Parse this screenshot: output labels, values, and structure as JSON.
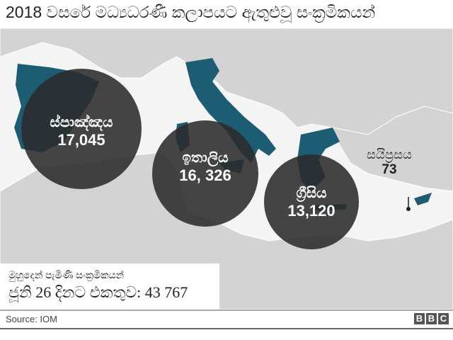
{
  "title": "2018 වසරේ මධ්‍යධරණී කලාපයට ඇතුළුවූ සංක්‍රමිකයන්",
  "colors": {
    "highlight": "#1d5d74",
    "land": "#d3d3d3",
    "sea": "#f4f4f4",
    "bubble": "#2b2b2b"
  },
  "countries": [
    {
      "name": "ස්පාඤ්ඤය",
      "value": "17,045"
    },
    {
      "name": "ඉතාලිය",
      "value": "16, 326"
    },
    {
      "name": "ග්‍රීසිය",
      "value": "13,120"
    },
    {
      "name": "සයිප්‍රසය",
      "value": "73"
    }
  ],
  "info": {
    "line1": "මුහුදෙන් පැමිණි සංක්‍රමිකයන්",
    "line2": "ජූනි 26 දිනට එකතුව: 43 767"
  },
  "footer": {
    "source": "Source: IOM",
    "logo": [
      "B",
      "B",
      "C"
    ]
  }
}
